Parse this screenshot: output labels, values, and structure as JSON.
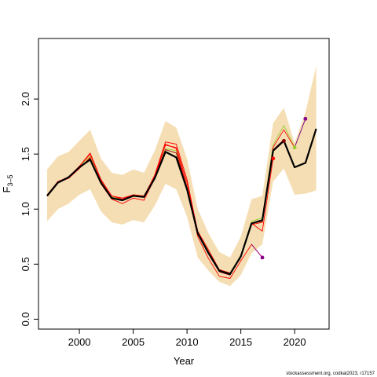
{
  "chart_data": {
    "type": "line",
    "title": "",
    "xlabel": "Year",
    "ylabel_main": "F",
    "ylabel_sub": "3–5",
    "xlim": [
      1996.2,
      2023.2
    ],
    "ylim": [
      -0.09,
      2.55
    ],
    "xticks": [
      2000,
      2005,
      2010,
      2015,
      2020
    ],
    "yticks": [
      0.0,
      0.5,
      1.0,
      1.5,
      2.0
    ],
    "ytick_labels": [
      "0.0",
      "0.5",
      "1.0",
      "1.5",
      "2.0"
    ],
    "grid": false,
    "legend": "none",
    "colors": {
      "band": "#f5deb3",
      "main": "#000000",
      "retro": "#ff0000",
      "retro_dark": "#8b0000",
      "green": "#9acd32",
      "purple": "#8b008b"
    },
    "band": {
      "x": [
        1997,
        1998,
        1999,
        2000,
        2001,
        2002,
        2003,
        2004,
        2005,
        2006,
        2007,
        2008,
        2009,
        2010,
        2011,
        2012,
        2013,
        2014,
        2015,
        2016,
        2017,
        2018,
        2019,
        2020,
        2021,
        2022
      ],
      "upper": [
        1.36,
        1.48,
        1.52,
        1.62,
        1.72,
        1.46,
        1.33,
        1.31,
        1.36,
        1.33,
        1.53,
        1.8,
        1.74,
        1.46,
        1.0,
        0.78,
        0.61,
        0.56,
        0.75,
        1.09,
        1.12,
        1.78,
        1.92,
        1.6,
        1.88,
        2.3
      ],
      "lower": [
        0.89,
        1.0,
        1.05,
        1.13,
        1.18,
        0.98,
        0.88,
        0.86,
        0.9,
        0.88,
        1.03,
        1.23,
        1.18,
        0.93,
        0.56,
        0.44,
        0.34,
        0.3,
        0.4,
        0.6,
        0.68,
        1.25,
        1.37,
        1.13,
        1.14,
        1.17
      ]
    },
    "series": [
      {
        "x": [
          1997,
          1998,
          1999,
          2000,
          2001,
          2002,
          2003,
          2004,
          2005,
          2006,
          2007,
          2008,
          2009,
          2010,
          2011,
          2012,
          2013,
          2014,
          2015,
          2016,
          2017,
          2018,
          2019,
          2020,
          2021,
          2022
        ],
        "values": [
          1.12,
          1.24,
          1.29,
          1.38,
          1.45,
          1.24,
          1.1,
          1.08,
          1.12,
          1.11,
          1.28,
          1.52,
          1.47,
          1.18,
          0.78,
          0.6,
          0.44,
          0.41,
          0.57,
          0.87,
          0.9,
          1.53,
          1.62,
          1.38,
          1.42,
          1.73
        ],
        "color": "#000000",
        "width": 2.2
      },
      {
        "x": [
          1997,
          1998,
          1999,
          2000,
          2001,
          2002,
          2003,
          2004,
          2005,
          2006,
          2007,
          2008,
          2009,
          2010,
          2011,
          2012,
          2013,
          2014,
          2015,
          2016,
          2017,
          2018,
          2019,
          2020,
          2021
        ],
        "values": [
          1.12,
          1.25,
          1.29,
          1.39,
          1.48,
          1.25,
          1.11,
          1.09,
          1.13,
          1.12,
          1.29,
          1.55,
          1.53,
          1.21,
          0.79,
          0.62,
          0.45,
          0.42,
          0.58,
          0.89,
          0.92,
          1.58,
          1.76,
          1.56,
          1.82
        ],
        "color": "#9acd32",
        "width": 0.9
      },
      {
        "x": [
          1997,
          1998,
          1999,
          2000,
          2001,
          2002,
          2003,
          2004,
          2005,
          2006,
          2007,
          2008,
          2009,
          2010,
          2011,
          2012,
          2013,
          2014,
          2015,
          2016,
          2017,
          2018,
          2019,
          2020
        ],
        "values": [
          1.12,
          1.25,
          1.29,
          1.39,
          1.5,
          1.26,
          1.12,
          1.1,
          1.13,
          1.12,
          1.3,
          1.58,
          1.56,
          1.24,
          0.8,
          0.63,
          0.45,
          0.42,
          0.57,
          0.86,
          0.88,
          1.56,
          1.72,
          1.56
        ],
        "color": "#ff0000",
        "width": 0.9
      },
      {
        "x": [
          1997,
          1998,
          1999,
          2000,
          2001,
          2002,
          2003,
          2004,
          2005,
          2006,
          2007,
          2008,
          2009,
          2010,
          2011,
          2012,
          2013,
          2014,
          2015,
          2016,
          2017,
          2018,
          2019
        ],
        "values": [
          1.13,
          1.25,
          1.28,
          1.37,
          1.46,
          1.24,
          1.1,
          1.08,
          1.12,
          1.11,
          1.29,
          1.54,
          1.51,
          1.19,
          0.78,
          0.59,
          0.43,
          0.4,
          0.57,
          0.87,
          0.89,
          1.54,
          1.63
        ],
        "color": "#8b0000",
        "width": 0.9
      },
      {
        "x": [
          1997,
          1998,
          1999,
          2000,
          2001,
          2002,
          2003,
          2004,
          2005,
          2006,
          2007,
          2008,
          2009,
          2010,
          2011,
          2012,
          2013,
          2014,
          2015,
          2016,
          2017,
          2018
        ],
        "values": [
          1.12,
          1.25,
          1.29,
          1.39,
          1.51,
          1.27,
          1.12,
          1.09,
          1.13,
          1.11,
          1.31,
          1.61,
          1.59,
          1.27,
          0.79,
          0.61,
          0.44,
          0.41,
          0.56,
          0.87,
          0.8,
          1.46
        ],
        "color": "#ff0000",
        "width": 0.9
      },
      {
        "x": [
          1997,
          1998,
          1999,
          2000,
          2001,
          2002,
          2003,
          2004,
          2005,
          2006,
          2007,
          2008,
          2009,
          2010,
          2011,
          2012,
          2013,
          2014,
          2015,
          2016,
          2017
        ],
        "values": [
          1.12,
          1.24,
          1.28,
          1.37,
          1.47,
          1.23,
          1.09,
          1.05,
          1.1,
          1.08,
          1.28,
          1.59,
          1.55,
          1.2,
          0.75,
          0.55,
          0.39,
          0.37,
          0.53,
          0.68,
          0.56
        ],
        "color": "#ff0000",
        "width": 0.9
      },
      {
        "x": [
          2016,
          2017
        ],
        "values": [
          0.68,
          0.56
        ],
        "color": "#8b008b",
        "width": 0.9
      },
      {
        "x": [
          2020,
          2021
        ],
        "values": [
          1.56,
          1.82
        ],
        "color": "#8b008b",
        "width": 0.9
      }
    ],
    "points": [
      {
        "x": 2017,
        "y": 0.56,
        "color": "#8b008b"
      },
      {
        "x": 2018,
        "y": 1.46,
        "color": "#ff0000"
      },
      {
        "x": 2019,
        "y": 1.62,
        "color": "#8b0000"
      },
      {
        "x": 2020,
        "y": 1.56,
        "color": "#9acd32"
      },
      {
        "x": 2021,
        "y": 1.82,
        "color": "#8b008b"
      }
    ]
  },
  "credit": "stockassessment.org, codkat2023, r17157"
}
